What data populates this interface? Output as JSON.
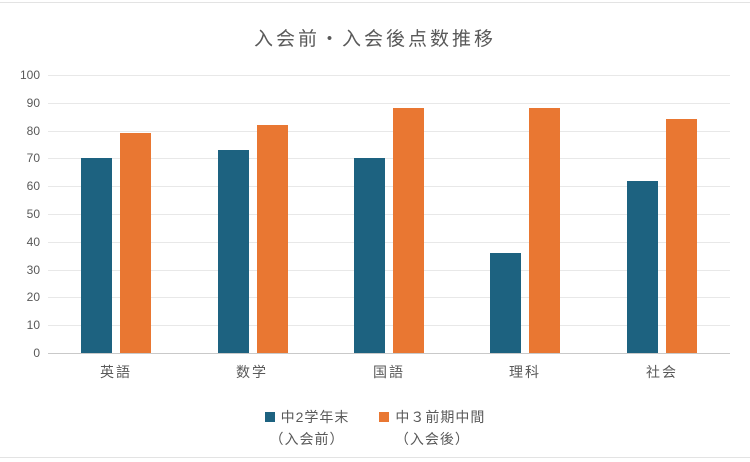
{
  "title": "入会前・入会後点数推移",
  "chart_data": {
    "type": "bar",
    "title": "入会前・入会後点数推移",
    "categories": [
      "英語",
      "数学",
      "国語",
      "理科",
      "社会"
    ],
    "series": [
      {
        "name": "中2学年末（入会前）",
        "legend_line1": "中2学年末",
        "legend_line2": "（入会前）",
        "color": "#1d6280",
        "values": [
          70,
          73,
          70,
          36,
          62
        ]
      },
      {
        "name": "中３前期中間（入会後）",
        "legend_line1": "中３前期中間",
        "legend_line2": "（入会後）",
        "color": "#e97732",
        "values": [
          79,
          82,
          88,
          88,
          84
        ]
      }
    ],
    "xlabel": "",
    "ylabel": "",
    "ylim": [
      0,
      100
    ],
    "yticks": [
      0,
      10,
      20,
      30,
      40,
      50,
      60,
      70,
      80,
      90,
      100
    ],
    "grid": true,
    "legend_position": "bottom"
  },
  "colors": {
    "series_before": "#1d6280",
    "series_after": "#e97732",
    "text": "#595959",
    "gridline": "#e8e8e8",
    "axis_line": "#c9c9c9",
    "background": "#ffffff"
  }
}
